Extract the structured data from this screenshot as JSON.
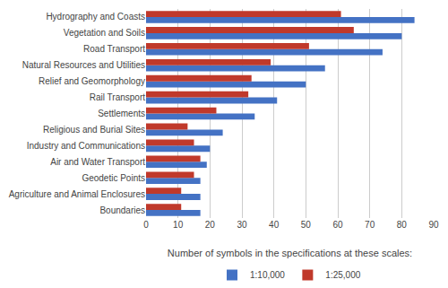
{
  "chart_data": {
    "type": "bar",
    "orientation": "horizontal",
    "categories": [
      "Boundaries",
      "Agriculture and Animal Enclosures",
      "Geodetic Points",
      "Air and Water Transport",
      "Industry and Communications",
      "Religious and Burial Sites",
      "Settlements",
      "Rail Transport",
      "Relief and Geomorphology",
      "Natural Resources and Utilities",
      "Road Transport",
      "Vegetation and Soils",
      "Hydrography and Coasts"
    ],
    "series": [
      {
        "name": "1:10,000",
        "color": "#4472C4",
        "values": [
          17,
          17,
          17,
          19,
          20,
          24,
          34,
          41,
          50,
          56,
          74,
          80,
          84
        ]
      },
      {
        "name": "1:25,000",
        "color": "#C0392B",
        "values": [
          11,
          11,
          15,
          17,
          15,
          13,
          22,
          32,
          33,
          39,
          51,
          65,
          61
        ]
      }
    ],
    "xlabel": "Number of symbols in the specifications at these scales:",
    "xlim": [
      0,
      90
    ],
    "xticks": [
      0,
      10,
      20,
      30,
      40,
      50,
      60,
      70,
      80,
      90
    ],
    "grid": true,
    "legend": "bottom"
  }
}
